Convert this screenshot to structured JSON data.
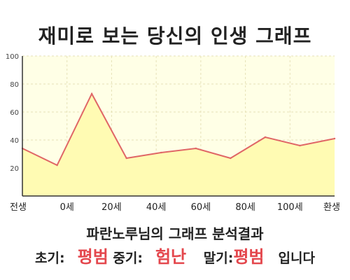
{
  "title": "재미로 보는 당신의 인생 그래프",
  "caption": "파란노루님의 그래프 분석결과",
  "result": {
    "early_label": "초기:",
    "early_value": "평범",
    "mid_label": "중기:",
    "mid_value": "험난",
    "late_label": "말기:",
    "late_value": "평범",
    "ending": "입니다"
  },
  "colors": {
    "line": "#e06666",
    "fill": "#fffbb3",
    "plot_bg": "#ffffe6",
    "highlight": "#e4474d"
  },
  "chart_data": {
    "type": "area",
    "title": "재미로 보는 당신의 인생 그래프",
    "xlabel": "",
    "ylabel": "",
    "ylim": [
      0,
      100
    ],
    "y_ticks": [
      100,
      80,
      60,
      40,
      20
    ],
    "x_ticks": [
      "전생",
      "0세",
      "20세",
      "40세",
      "60세",
      "80세",
      "100세",
      "환생"
    ],
    "grid": true,
    "series": [
      {
        "x": [
          "전생",
          "0세",
          "20세",
          "",
          "40세",
          "",
          "60세",
          "80세",
          "100세",
          "환생"
        ],
        "values": [
          34,
          22,
          73,
          27,
          31,
          34,
          27,
          42,
          36,
          41
        ]
      }
    ]
  }
}
